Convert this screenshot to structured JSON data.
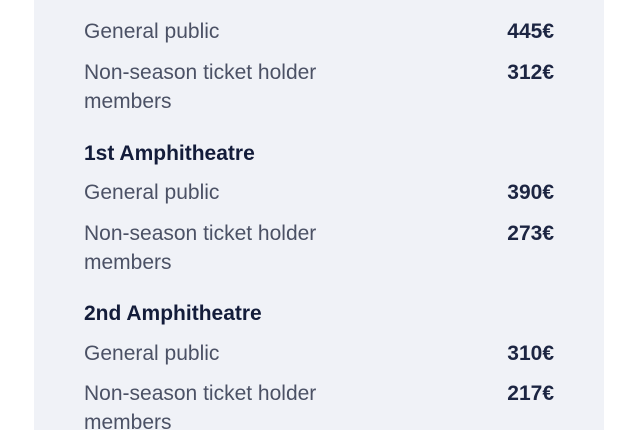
{
  "sections": [
    {
      "title": "",
      "rows": [
        {
          "label": "General public",
          "price": "445€"
        },
        {
          "label": "Non-season ticket holder members",
          "price": "312€"
        }
      ]
    },
    {
      "title": "1st Amphitheatre",
      "rows": [
        {
          "label": "General public",
          "price": "390€"
        },
        {
          "label": "Non-season ticket holder members",
          "price": "273€"
        }
      ]
    },
    {
      "title": "2nd Amphitheatre",
      "rows": [
        {
          "label": "General public",
          "price": "310€"
        },
        {
          "label": "Non-season ticket holder members",
          "price": "217€"
        }
      ]
    }
  ]
}
